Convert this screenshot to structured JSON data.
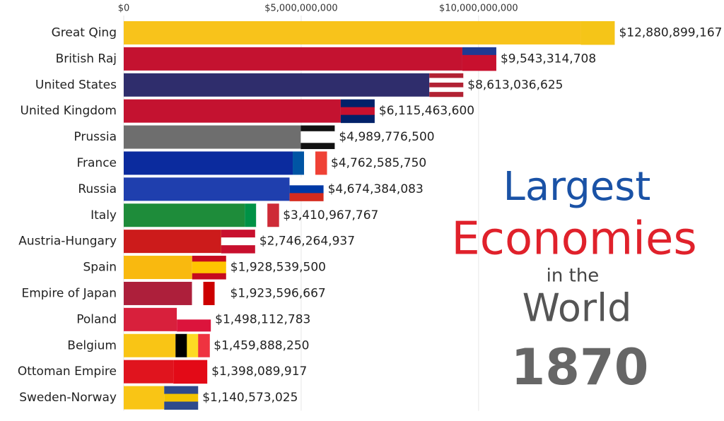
{
  "chart_data": {
    "type": "bar",
    "orientation": "horizontal",
    "title_lines": [
      {
        "text": "Largest",
        "color": "#1a52a6"
      },
      {
        "text": "Economies",
        "color": "#e0212b"
      },
      {
        "text": "in the",
        "color": "#444444"
      },
      {
        "text": "World",
        "color": "#555555"
      }
    ],
    "year": "1870",
    "categories": [
      "Great Qing",
      "British Raj",
      "United States",
      "United Kingdom",
      "Prussia",
      "France",
      "Russia",
      "Italy",
      "Austria-Hungary",
      "Spain",
      "Empire of Japan",
      "Poland",
      "Belgium",
      "Ottoman Empire",
      "Sweden-Norway"
    ],
    "values": [
      12880899167,
      9543314708,
      8613036625,
      6115463600,
      4989776500,
      4762585750,
      4674384083,
      3410967767,
      2746264937,
      1928539500,
      1923596667,
      1498112783,
      1459888250,
      1398089917,
      1140573025
    ],
    "value_labels": [
      "$12,880,899,167",
      "$9,543,314,708",
      "$8,613,036,625",
      "$6,115,463,600",
      "$4,989,776,500",
      "$4,762,585,750",
      "$4,674,384,083",
      "$3,410,967,767",
      "$2,746,264,937",
      "$1,928,539,500",
      "$1,923,596,667",
      "$1,498,112,783",
      "$1,459,888,250",
      "$1,398,089,917",
      "$1,140,573,025"
    ],
    "colors": [
      "#f8c31b",
      "#c41230",
      "#2f2d6c",
      "#c41230",
      "#6e6e6e",
      "#0b2b9e",
      "#1f3fae",
      "#1e8c3a",
      "#cc1b1b",
      "#f9b90f",
      "#ad1f3b",
      "#d8203c",
      "#f9c515",
      "#e0141e",
      "#f9c515"
    ],
    "xlim": [
      0,
      16000000000
    ],
    "xticks": [
      {
        "value": 0,
        "label": "$0"
      },
      {
        "value": 5000000000,
        "label": "$5,000,000,000"
      },
      {
        "value": 10000000000,
        "label": "$10,000,000,000"
      }
    ],
    "grid": true
  }
}
